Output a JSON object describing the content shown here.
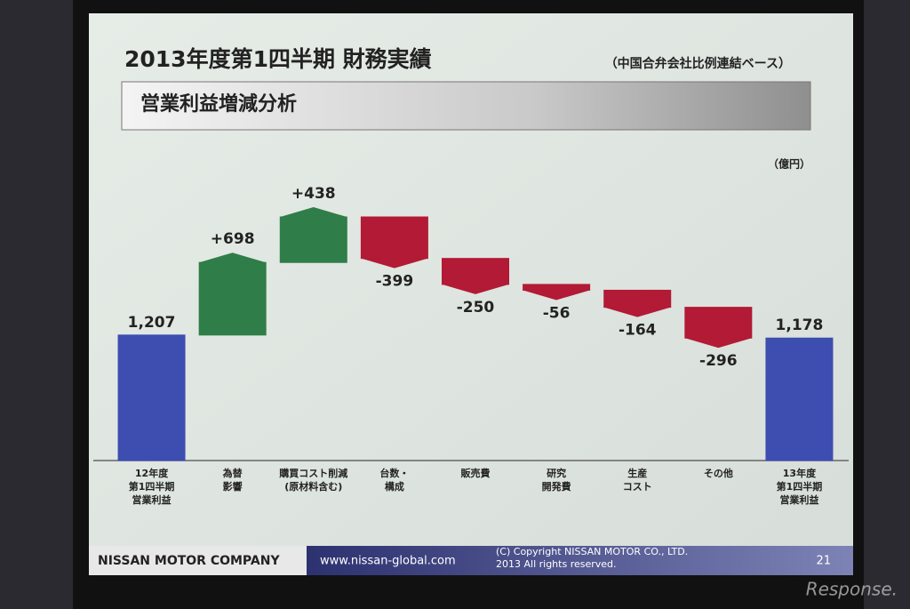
{
  "chart_data": {
    "type": "waterfall",
    "title": "2013年度第1四半期 財務実績",
    "subtitle": "（中国合弁会社比例連結ベース）",
    "section_title": "営業利益増減分析",
    "unit_label": "（億円）",
    "categories": [
      "12年度\n第1四半期\n営業利益",
      "為替\n影響",
      "購買コスト削減\n(原材料含む)",
      "台数・\n構成",
      "販売費",
      "研究\n開発費",
      "生産\nコスト",
      "その他",
      "13年度\n第1四半期\n営業利益"
    ],
    "values": [
      1207,
      698,
      438,
      -399,
      -250,
      -56,
      -164,
      -296,
      1178
    ],
    "value_labels": [
      "1,207",
      "+698",
      "+438",
      "-399",
      "-250",
      "-56",
      "-164",
      "-296",
      "1,178"
    ],
    "colors": {
      "total": "#3d4db0",
      "increase": "#2f7d48",
      "decrease": "#b21a35"
    }
  },
  "footer": {
    "company": "NISSAN MOTOR COMPANY",
    "url": "www.nissan-global.com",
    "copyright": "(C) Copyright NISSAN MOTOR CO., LTD.\n2013 All rights reserved.",
    "page_number": "21"
  },
  "watermark": "Response."
}
